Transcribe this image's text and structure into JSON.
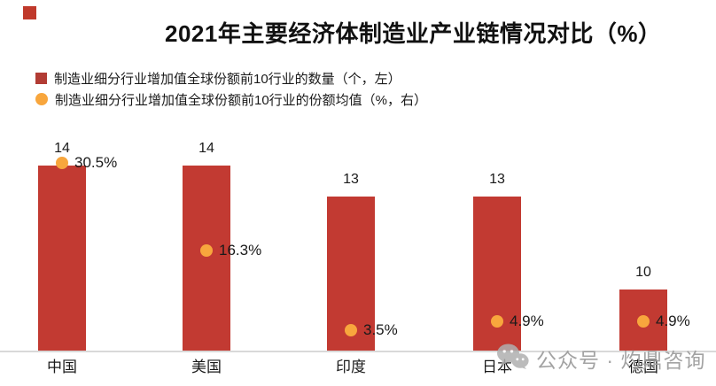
{
  "page": {
    "background": "#ffffff"
  },
  "decoration": {
    "corner_square_color": "#c0392b"
  },
  "title": {
    "text": "2021年主要经济体制造业产业链情况对比（%）"
  },
  "legend": {
    "items": [
      {
        "label": "制造业细分行业增加值全球份额前10行业的数量（个，左）",
        "marker": "square",
        "color": "#b23c34"
      },
      {
        "label": "制造业细分行业增加值全球份额前10行业的份额均值（%，右）",
        "marker": "circle",
        "color": "#f8a63d"
      }
    ]
  },
  "chart_data": {
    "type": "bar",
    "title": "2021年主要经济体制造业产业链情况对比（%）",
    "categories": [
      "中国",
      "美国",
      "印度",
      "日本",
      "德国"
    ],
    "series": [
      {
        "name": "制造业细分行业增加值全球份额前10行业的数量（个，左）",
        "type": "bar",
        "axis": "left",
        "color": "#c23a32",
        "values": [
          14,
          14,
          13,
          13,
          10
        ],
        "data_labels": [
          "14",
          "14",
          "13",
          "13",
          "10"
        ]
      },
      {
        "name": "制造业细分行业增加值全球份额前10行业的份额均值（%，右）",
        "type": "scatter",
        "axis": "right",
        "color": "#f8a63d",
        "values": [
          30.5,
          16.3,
          3.5,
          4.9,
          4.9
        ],
        "data_labels": [
          "30.5%",
          "16.3%",
          "3.5%",
          "4.9%",
          "4.9%"
        ]
      }
    ],
    "ylim_left": [
      8,
      14.5
    ],
    "ylim_right": [
      0,
      35
    ],
    "grid": false,
    "legend_position": "top-left",
    "baseline_color": "#d9d9d9"
  },
  "watermark": {
    "icon": "wechat-icon",
    "text": "公众号 · 灼鼎咨询"
  }
}
